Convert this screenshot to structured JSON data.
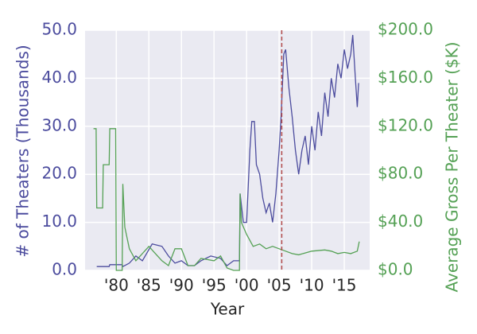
{
  "chart_data": {
    "type": "line",
    "xlabel": "Year",
    "ylabel": "# of Theaters (Thousands)",
    "y2label": "Average Gross Per Theater ($K)",
    "xlim": [
      1975.2,
      2018.9
    ],
    "ylim": [
      0,
      50
    ],
    "y2lim": [
      0,
      200
    ],
    "xticks": [
      {
        "value": 1980,
        "label": "'80"
      },
      {
        "value": 1985,
        "label": "'85"
      },
      {
        "value": 1990,
        "label": "'90"
      },
      {
        "value": 1995,
        "label": "'95"
      },
      {
        "value": 2000,
        "label": "'00"
      },
      {
        "value": 2005,
        "label": "'05"
      },
      {
        "value": 2010,
        "label": "'10"
      },
      {
        "value": 2015,
        "label": "'15"
      }
    ],
    "yticks": [
      {
        "value": 0,
        "label": "0.0"
      },
      {
        "value": 10,
        "label": "10.0"
      },
      {
        "value": 20,
        "label": "20.0"
      },
      {
        "value": 30,
        "label": "30.0"
      },
      {
        "value": 40,
        "label": "40.0"
      },
      {
        "value": 50,
        "label": "50.0"
      }
    ],
    "y2ticks": [
      {
        "value": 0,
        "label": "$0.0"
      },
      {
        "value": 40,
        "label": "$40.0"
      },
      {
        "value": 80,
        "label": "$80.0"
      },
      {
        "value": 120,
        "label": "$120.0"
      },
      {
        "value": 160,
        "label": "$160.0"
      },
      {
        "value": 200,
        "label": "$200.0"
      }
    ],
    "grid": true,
    "ycolor": "#4c4c9e",
    "y2color": "#55a155",
    "vline": {
      "x": 2005.4,
      "color": "#b04848"
    },
    "series": [
      {
        "color": "#4c4c9e",
        "axis": "y",
        "x": [
          1977,
          1978.9,
          1979,
          1980.9,
          1981,
          1982,
          1983,
          1984,
          1985.5,
          1987,
          1988,
          1989,
          1990,
          1991,
          1992,
          1993,
          1994.5,
          1996,
          1997,
          1998,
          1998.9,
          1999,
          1999.5,
          2000,
          2000.5,
          2000.8,
          2001.2,
          2001.5,
          2002,
          2002.5,
          2003,
          2003.5,
          2004,
          2004.5,
          2005,
          2005.3,
          2005.7,
          2006,
          2006.5,
          2007,
          2007.5,
          2008,
          2008.5,
          2009,
          2009.5,
          2010,
          2010.5,
          2011,
          2011.5,
          2012,
          2012.5,
          2013,
          2013.5,
          2014,
          2014.5,
          2015,
          2015.5,
          2016,
          2016.3,
          2016.7,
          2017,
          2017.2
        ],
        "values": [
          0.8,
          0.8,
          1.2,
          1.2,
          0.8,
          1.5,
          3,
          2,
          5.5,
          5,
          3,
          1.5,
          2,
          1,
          1,
          2,
          3,
          2.5,
          1,
          2,
          2,
          16,
          10,
          10,
          25,
          31,
          31,
          22,
          20,
          15,
          12,
          14,
          10,
          16,
          25,
          32,
          45,
          46,
          38,
          32,
          25,
          20,
          25,
          28,
          22,
          30,
          25,
          33,
          28,
          37,
          32,
          40,
          36,
          43,
          40,
          46,
          42,
          45,
          49,
          40,
          34,
          39
        ]
      },
      {
        "color": "#55a155",
        "axis": "y2",
        "x": [
          1976.5,
          1976.9,
          1977,
          1977.9,
          1978,
          1978.9,
          1979,
          1979.9,
          1980,
          1980.9,
          1981,
          1981.3,
          1982,
          1983,
          1985,
          1986,
          1987,
          1988,
          1989,
          1990,
          1991,
          1992,
          1993,
          1995,
          1996,
          1997,
          1998,
          1998.9,
          1999,
          1999.2,
          2000,
          2001,
          2002,
          2003,
          2004,
          2005,
          2006,
          2007,
          2008,
          2010,
          2012,
          2013,
          2014,
          2015,
          2016,
          2017,
          2017.3
        ],
        "values": [
          118,
          118,
          52,
          52,
          88,
          88,
          118,
          118,
          0,
          0,
          72,
          36,
          18,
          8,
          20,
          14,
          8,
          4,
          18,
          18,
          4,
          4,
          10,
          8,
          12,
          2,
          0,
          0,
          64,
          40,
          30,
          20,
          22,
          18,
          20,
          18,
          16,
          14,
          13,
          16,
          17,
          16,
          14,
          15,
          14,
          16,
          24
        ]
      }
    ]
  }
}
